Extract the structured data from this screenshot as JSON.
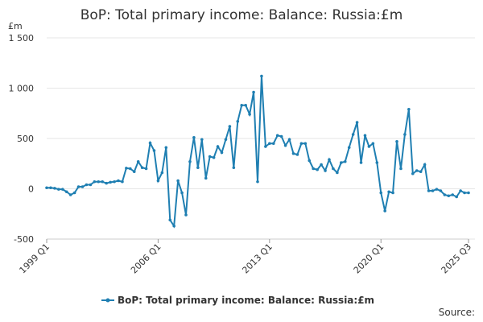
{
  "chart_data": {
    "type": "line",
    "title": "BoP: Total primary income: Balance: Russia:£m",
    "y_unit": "£m",
    "source": "Source:",
    "legend": "bottom",
    "grid": true,
    "ylim": [
      -500,
      1500
    ],
    "yticks": [
      -500,
      0,
      500,
      {
        "value": 1000,
        "label": "1 000"
      },
      {
        "value": 1500,
        "label": "1 500"
      }
    ],
    "categories": [
      "1999 Q1",
      null,
      null,
      null,
      null,
      null,
      null,
      null,
      null,
      null,
      null,
      null,
      null,
      null,
      null,
      null,
      null,
      null,
      null,
      null,
      null,
      null,
      null,
      null,
      null,
      null,
      null,
      null,
      "2006 Q1",
      null,
      null,
      null,
      null,
      null,
      null,
      null,
      null,
      null,
      null,
      null,
      null,
      null,
      null,
      null,
      null,
      null,
      null,
      null,
      null,
      null,
      null,
      null,
      null,
      null,
      null,
      null,
      "2013 Q1",
      null,
      null,
      null,
      null,
      null,
      null,
      null,
      null,
      null,
      null,
      null,
      null,
      null,
      null,
      null,
      null,
      null,
      null,
      null,
      null,
      null,
      null,
      null,
      null,
      null,
      null,
      null,
      "2020 Q1",
      null,
      null,
      null,
      null,
      null,
      null,
      null,
      null,
      null,
      null,
      null,
      null,
      null,
      null,
      null,
      null,
      null,
      null,
      null,
      null,
      null,
      "2025 Q3"
    ],
    "series": [
      {
        "name": "BoP: Total primary income: Balance: Russia:£m",
        "color": "#1f7fb2",
        "values": [
          10,
          10,
          5,
          -5,
          -5,
          -30,
          -60,
          -40,
          20,
          20,
          40,
          40,
          70,
          70,
          70,
          55,
          65,
          70,
          80,
          70,
          205,
          200,
          170,
          270,
          210,
          200,
          455,
          380,
          80,
          160,
          410,
          -310,
          -370,
          80,
          -40,
          -260,
          270,
          510,
          210,
          490,
          105,
          320,
          310,
          420,
          360,
          490,
          620,
          210,
          670,
          830,
          830,
          740,
          960,
          70,
          1120,
          420,
          450,
          450,
          530,
          520,
          430,
          490,
          350,
          340,
          450,
          450,
          280,
          200,
          190,
          240,
          180,
          290,
          200,
          160,
          260,
          270,
          410,
          540,
          660,
          260,
          530,
          420,
          450,
          260,
          -40,
          -220,
          -30,
          -40,
          470,
          200,
          540,
          790,
          150,
          180,
          170,
          240,
          -20,
          -20,
          -5,
          -20,
          -60,
          -70,
          -60,
          -80,
          -20,
          -40,
          -40
        ]
      }
    ]
  }
}
